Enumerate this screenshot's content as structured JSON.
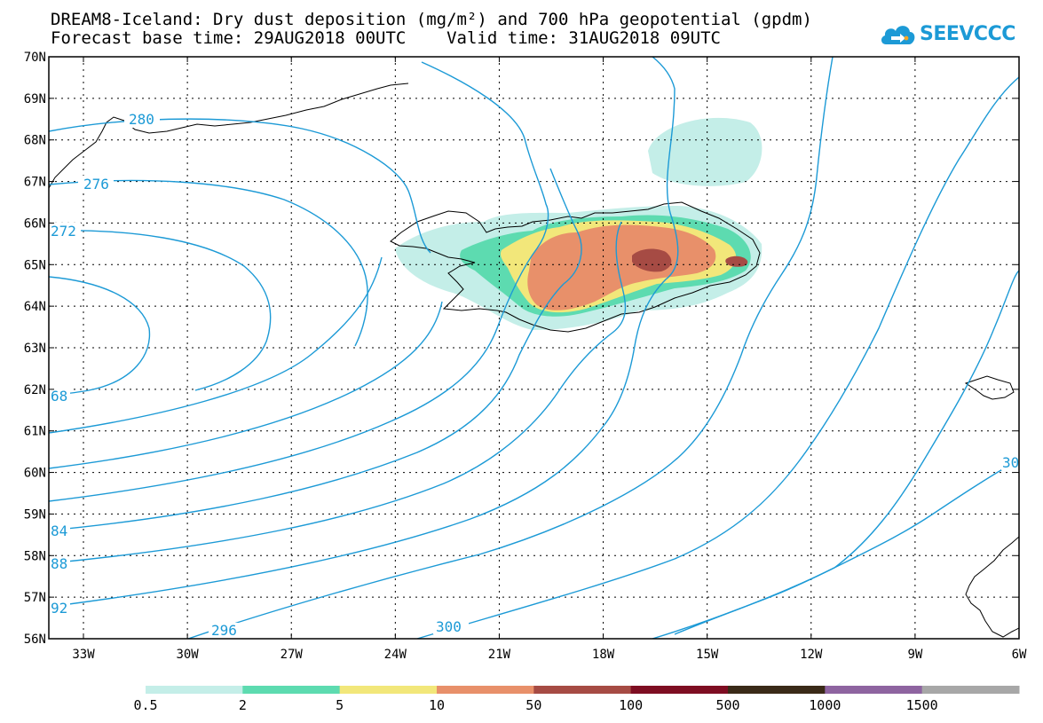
{
  "title": {
    "line1": "DREAM8-Iceland: Dry dust deposition (mg/m²) and 700 hPa geopotential (gpdm)",
    "line2": "Forecast base time: 29AUG2018 00UTC    Valid time: 31AUG2018 09UTC"
  },
  "logo": {
    "text": "SEEVCCC",
    "icon": "cloud-icon"
  },
  "axes": {
    "lat_labels": [
      "70N",
      "69N",
      "68N",
      "67N",
      "66N",
      "65N",
      "64N",
      "63N",
      "62N",
      "61N",
      "60N",
      "59N",
      "58N",
      "57N",
      "56N"
    ],
    "lon_labels": [
      "33W",
      "30W",
      "27W",
      "24W",
      "21W",
      "18W",
      "15W",
      "12W",
      "9W",
      "6W"
    ]
  },
  "contour_labels": [
    "280",
    "276",
    "272",
    "68",
    "84",
    "88",
    "92",
    "296",
    "300",
    "30"
  ],
  "legend": {
    "labels": [
      "0.5",
      "2",
      "5",
      "10",
      "50",
      "100",
      "500",
      "1000",
      "1500"
    ],
    "colors": [
      "#c4eee8",
      "#5ddbb0",
      "#f2e77a",
      "#e8906a",
      "#a64b44",
      "#7e0d22",
      "#3a2a18",
      "#8e64a0",
      "#a7a7a7"
    ]
  }
}
